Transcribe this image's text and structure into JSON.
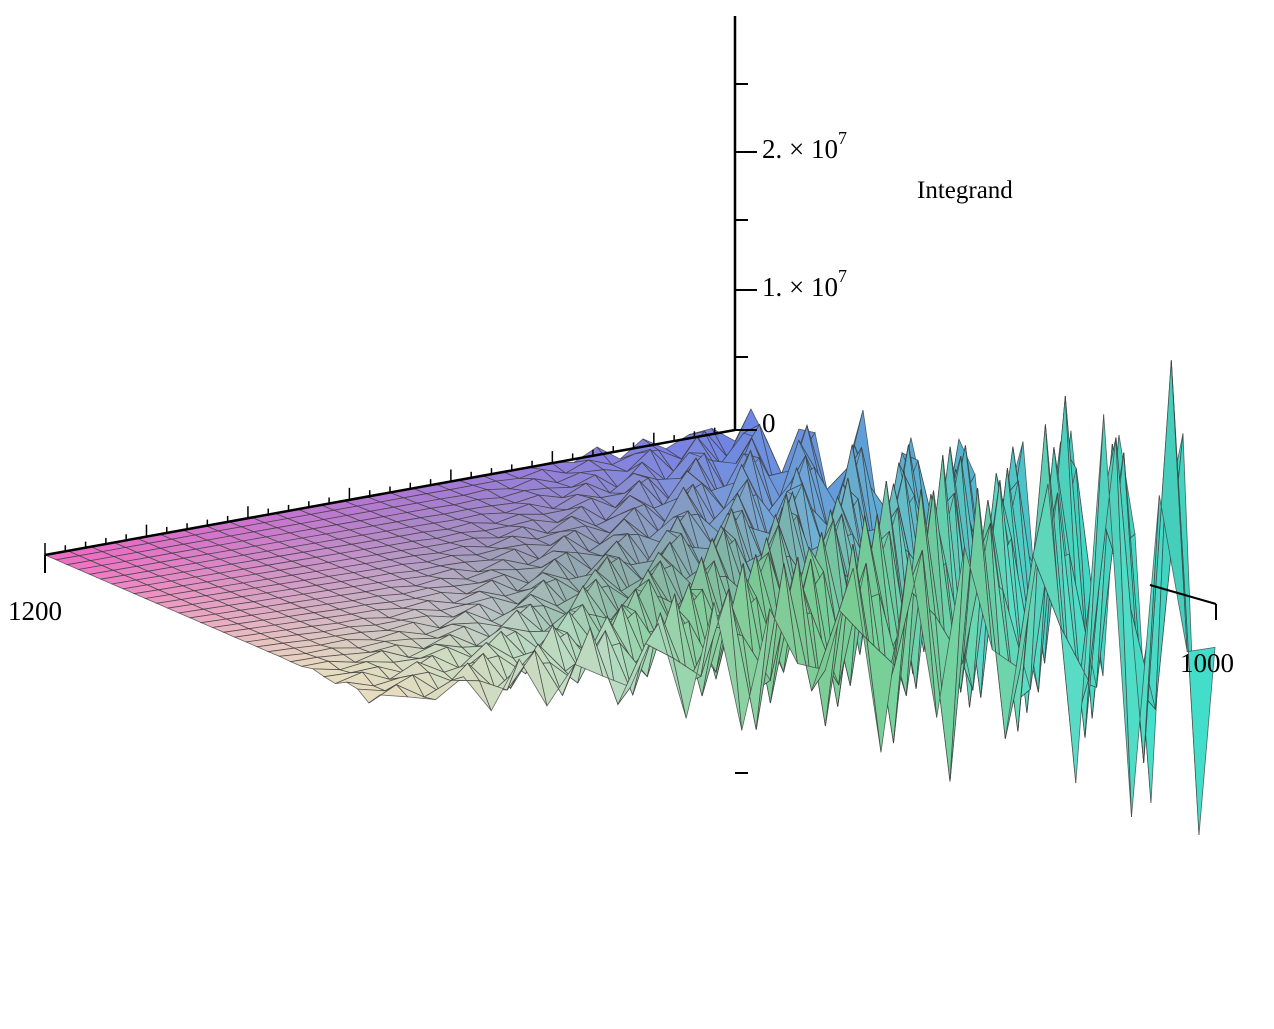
{
  "chart_data": {
    "type": "surface",
    "title": "",
    "zlabel": "Integrand",
    "axis_labels": {
      "x_near_left": "1200",
      "x_near_right": "1000",
      "z_ticks": [
        "0",
        "1. × 10",
        "2. × 10"
      ],
      "z_exponent": "7"
    },
    "z_tick_values": [
      0,
      10000000,
      20000000
    ],
    "z_range": [
      -12000000,
      28000000
    ],
    "mesh": {
      "rows": 30,
      "cols": 30
    },
    "behavior": "surface flat near 0 on far side, growing oscillation toward near/right corner with amplitude up to about 2.5e7",
    "colors": {
      "far_left": "#f069c3",
      "far_right": "#6f83e6",
      "near_left": "#e9dcc0",
      "near_right": "#3fd8c4",
      "mid_green": "#6fc275",
      "mesh_line": "#3a3a3a"
    }
  }
}
